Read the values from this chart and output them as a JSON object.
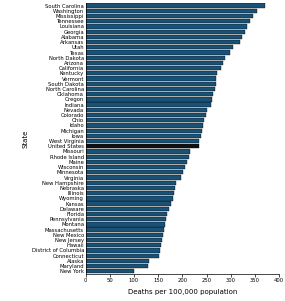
{
  "states": [
    "New York",
    "Maryland",
    "Alaska",
    "Connecticut",
    "District of Columbia",
    "Hawaii",
    "New Jersey",
    "New Mexico",
    "Massachusetts",
    "Montana",
    "Pennsylvania",
    "Florida",
    "Delaware",
    "Kansas",
    "Wyoming",
    "Illinois",
    "Nebraska",
    "New Hampshire",
    "Virginia",
    "Minnesota",
    "Wisconsin",
    "Maine",
    "Rhode Island",
    "Missouri",
    "United States",
    "West Virginia",
    "Iowa",
    "Michigan",
    "Idaho",
    "Ohio",
    "Colorado",
    "Nevada",
    "Indiana",
    "Oregon",
    "Oklahoma",
    "North Carolina",
    "South Dakota",
    "Vermont",
    "Kentucky",
    "California",
    "Arizona",
    "North Dakota",
    "Texas",
    "Utah",
    "Arkansas",
    "Alabama",
    "Georgia",
    "Louisiana",
    "Tennessee",
    "Mississippi",
    "Washington",
    "South Carolina"
  ],
  "values": [
    101,
    128,
    131,
    152,
    153,
    155,
    157,
    160,
    161,
    164,
    167,
    169,
    173,
    177,
    181,
    183,
    185,
    186,
    197,
    202,
    206,
    210,
    214,
    215,
    234,
    235,
    238,
    241,
    242,
    245,
    248,
    251,
    258,
    261,
    264,
    267,
    269,
    270,
    272,
    280,
    284,
    288,
    298,
    305,
    318,
    323,
    330,
    333,
    340,
    345,
    353,
    370
  ],
  "bar_color": "#1a5276",
  "bar_edge_color": "#000000",
  "us_bar_color": "#111111",
  "xlabel": "Deaths per 100,000 population",
  "ylabel": "State",
  "xlim": [
    0,
    400
  ],
  "xticks": [
    0,
    50,
    100,
    150,
    200,
    250,
    300,
    350,
    400
  ],
  "tick_fontsize": 3.8,
  "label_fontsize": 3.8,
  "axis_label_fontsize": 5.0,
  "figsize": [
    2.85,
    3.01
  ],
  "dpi": 100
}
